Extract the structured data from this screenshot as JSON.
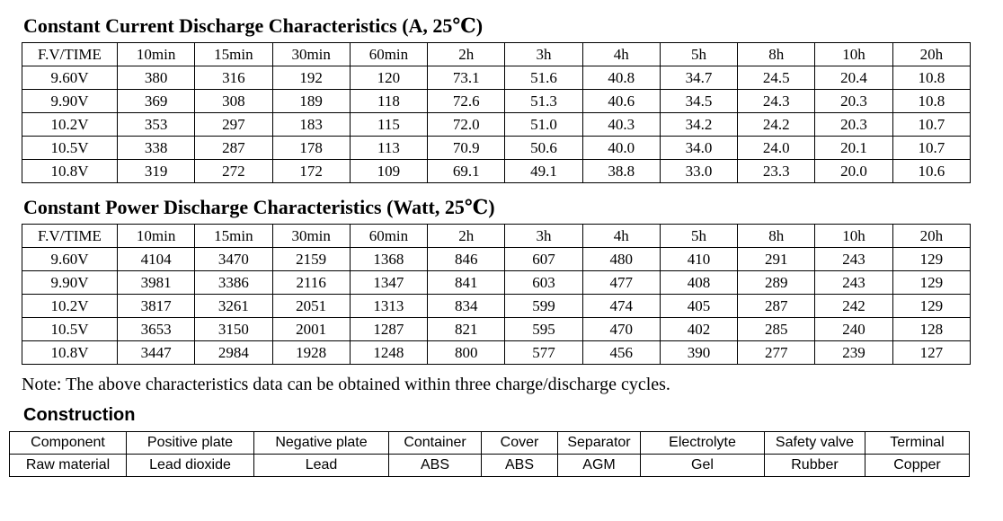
{
  "colors": {
    "text": "#000000",
    "background": "#ffffff",
    "table_border": "#000000"
  },
  "current_table": {
    "title": "Constant Current Discharge Characteristics (A, 25℃)",
    "header": [
      "F.V/TIME",
      "10min",
      "15min",
      "30min",
      "60min",
      "2h",
      "3h",
      "4h",
      "5h",
      "8h",
      "10h",
      "20h"
    ],
    "rows": [
      [
        "9.60V",
        "380",
        "316",
        "192",
        "120",
        "73.1",
        "51.6",
        "40.8",
        "34.7",
        "24.5",
        "20.4",
        "10.8"
      ],
      [
        "9.90V",
        "369",
        "308",
        "189",
        "118",
        "72.6",
        "51.3",
        "40.6",
        "34.5",
        "24.3",
        "20.3",
        "10.8"
      ],
      [
        "10.2V",
        "353",
        "297",
        "183",
        "115",
        "72.0",
        "51.0",
        "40.3",
        "34.2",
        "24.2",
        "20.3",
        "10.7"
      ],
      [
        "10.5V",
        "338",
        "287",
        "178",
        "113",
        "70.9",
        "50.6",
        "40.0",
        "34.0",
        "24.0",
        "20.1",
        "10.7"
      ],
      [
        "10.8V",
        "319",
        "272",
        "172",
        "109",
        "69.1",
        "49.1",
        "38.8",
        "33.0",
        "23.3",
        "20.0",
        "10.6"
      ]
    ]
  },
  "power_table": {
    "title": "Constant Power Discharge Characteristics (Watt, 25℃)",
    "header": [
      "F.V/TIME",
      "10min",
      "15min",
      "30min",
      "60min",
      "2h",
      "3h",
      "4h",
      "5h",
      "8h",
      "10h",
      "20h"
    ],
    "rows": [
      [
        "9.60V",
        "4104",
        "3470",
        "2159",
        "1368",
        "846",
        "607",
        "480",
        "410",
        "291",
        "243",
        "129"
      ],
      [
        "9.90V",
        "3981",
        "3386",
        "2116",
        "1347",
        "841",
        "603",
        "477",
        "408",
        "289",
        "243",
        "129"
      ],
      [
        "10.2V",
        "3817",
        "3261",
        "2051",
        "1313",
        "834",
        "599",
        "474",
        "405",
        "287",
        "242",
        "129"
      ],
      [
        "10.5V",
        "3653",
        "3150",
        "2001",
        "1287",
        "821",
        "595",
        "470",
        "402",
        "285",
        "240",
        "128"
      ],
      [
        "10.8V",
        "3447",
        "2984",
        "1928",
        "1248",
        "800",
        "577",
        "456",
        "390",
        "277",
        "239",
        "127"
      ]
    ]
  },
  "note": "Note: The above characteristics data can be obtained within three charge/discharge cycles.",
  "construction": {
    "heading": "Construction",
    "rows": [
      [
        "Component",
        "Positive plate",
        "Negative plate",
        "Container",
        "Cover",
        "Separator",
        "Electrolyte",
        "Safety valve",
        "Terminal"
      ],
      [
        "Raw material",
        "Lead dioxide",
        "Lead",
        "ABS",
        "ABS",
        "AGM",
        "Gel",
        "Rubber",
        "Copper"
      ]
    ]
  }
}
